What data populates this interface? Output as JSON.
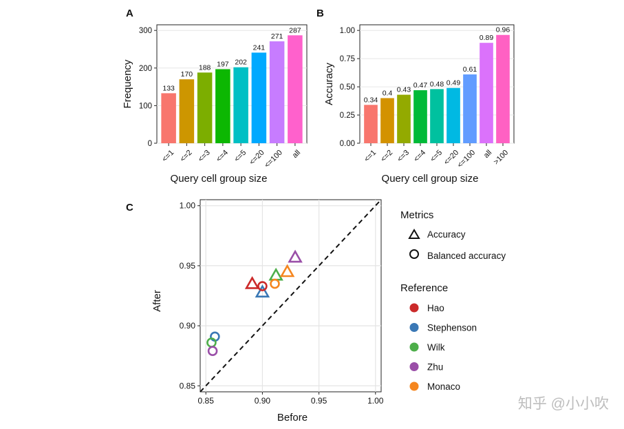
{
  "chart_data": [
    {
      "panel": "A",
      "type": "bar",
      "xlabel": "Query cell group size",
      "ylabel": "Frequency",
      "categories": [
        "<=1",
        "<=2",
        "<=3",
        "<=4",
        "<=5",
        "<=20",
        "<=100",
        "all"
      ],
      "values": [
        133,
        170,
        188,
        197,
        202,
        241,
        271,
        287
      ],
      "value_labels": [
        "133",
        "170",
        "188",
        "197",
        "202",
        "241",
        "271",
        "287"
      ],
      "colors": [
        "#F8766D",
        "#CD9600",
        "#7CAE00",
        "#0CB702",
        "#00BFC4",
        "#00A9FF",
        "#C77CFF",
        "#FF61CC"
      ],
      "yticks": [
        0,
        100,
        200,
        300
      ],
      "ytick_labels": [
        "0",
        "100",
        "200",
        "300"
      ],
      "ylim": [
        0,
        315
      ]
    },
    {
      "panel": "B",
      "type": "bar",
      "xlabel": "Query cell group size",
      "ylabel": "Accuracy",
      "categories": [
        "<=1",
        "<=2",
        "<=3",
        "<=4",
        "<=5",
        "<=20",
        "<=100",
        "all",
        ">100"
      ],
      "values": [
        0.34,
        0.4,
        0.43,
        0.47,
        0.48,
        0.49,
        0.61,
        0.89,
        0.96
      ],
      "value_labels": [
        "0.34",
        "0.4",
        "0.43",
        "0.47",
        "0.48",
        "0.49",
        "0.61",
        "0.89",
        "0.96"
      ],
      "colors": [
        "#F8766D",
        "#D39200",
        "#93AA00",
        "#00BA38",
        "#00C19F",
        "#00B9E3",
        "#619CFF",
        "#DB72FB",
        "#FF61C3"
      ],
      "yticks": [
        0,
        0.25,
        0.5,
        0.75,
        1.0
      ],
      "ytick_labels": [
        "0.00",
        "0.25",
        "0.50",
        "0.75",
        "1.00"
      ],
      "ylim": [
        0,
        1.05
      ]
    },
    {
      "panel": "C",
      "type": "scatter",
      "xlabel": "Before",
      "ylabel": "After",
      "xlim": [
        0.845,
        1.005
      ],
      "ylim": [
        0.845,
        1.005
      ],
      "xticks": [
        0.85,
        0.9,
        0.95,
        1.0
      ],
      "xtick_labels": [
        "0.85",
        "0.90",
        "0.95",
        "1.00"
      ],
      "yticks": [
        0.85,
        0.9,
        0.95,
        1.0
      ],
      "ytick_labels": [
        "0.85",
        "0.90",
        "0.95",
        "1.00"
      ],
      "diagonal": "dashed y = x",
      "points": [
        {
          "reference": "Hao",
          "metric": "Accuracy",
          "x": 0.891,
          "y": 0.935
        },
        {
          "reference": "Stephenson",
          "metric": "Accuracy",
          "x": 0.9,
          "y": 0.928
        },
        {
          "reference": "Wilk",
          "metric": "Accuracy",
          "x": 0.912,
          "y": 0.942
        },
        {
          "reference": "Zhu",
          "metric": "Accuracy",
          "x": 0.929,
          "y": 0.957
        },
        {
          "reference": "Monaco",
          "metric": "Accuracy",
          "x": 0.922,
          "y": 0.945
        },
        {
          "reference": "Hao",
          "metric": "Balanced accuracy",
          "x": 0.9,
          "y": 0.933
        },
        {
          "reference": "Stephenson",
          "metric": "Balanced accuracy",
          "x": 0.858,
          "y": 0.891
        },
        {
          "reference": "Wilk",
          "metric": "Balanced accuracy",
          "x": 0.855,
          "y": 0.886
        },
        {
          "reference": "Zhu",
          "metric": "Balanced accuracy",
          "x": 0.856,
          "y": 0.879
        },
        {
          "reference": "Monaco",
          "metric": "Balanced accuracy",
          "x": 0.911,
          "y": 0.935
        }
      ],
      "legend_metrics": {
        "title": "Metrics",
        "items": [
          {
            "label": "Accuracy",
            "shape": "triangle"
          },
          {
            "label": "Balanced accuracy",
            "shape": "circle"
          }
        ]
      },
      "legend_reference": {
        "title": "Reference",
        "items": [
          {
            "label": "Hao",
            "color": "#CB2A2A"
          },
          {
            "label": "Stephenson",
            "color": "#3A78B5"
          },
          {
            "label": "Wilk",
            "color": "#4DAE4A"
          },
          {
            "label": "Zhu",
            "color": "#9A4FA8"
          },
          {
            "label": "Monaco",
            "color": "#F5861F"
          }
        ]
      }
    }
  ],
  "panel_labels": {
    "a": "A",
    "b": "B",
    "c": "C"
  },
  "watermark": "知乎 @小小吹"
}
